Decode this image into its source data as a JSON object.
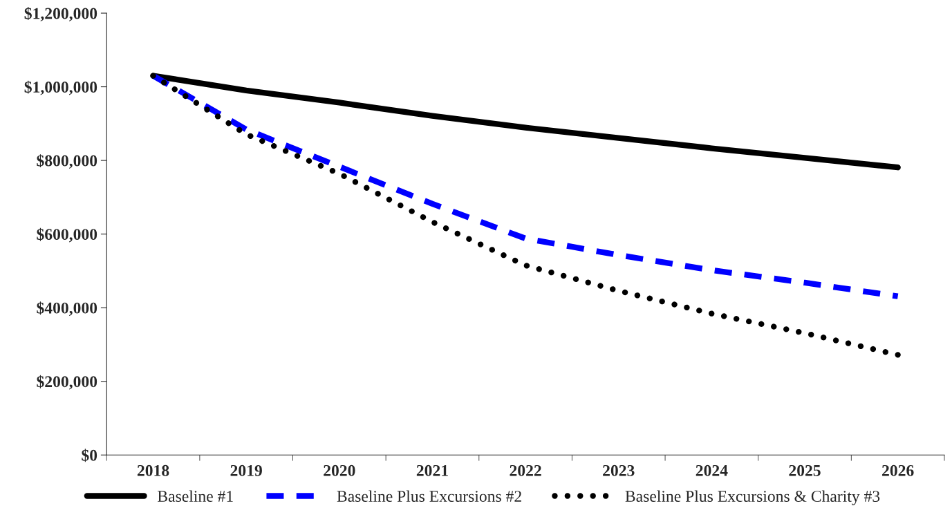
{
  "chart_data": {
    "type": "line",
    "categories": [
      "2018",
      "2019",
      "2020",
      "2021",
      "2022",
      "2023",
      "2024",
      "2025",
      "2026"
    ],
    "series": [
      {
        "name": "Baseline #1",
        "color": "#000000",
        "line_style": "solid",
        "values": [
          1030000,
          990000,
          957000,
          921000,
          889000,
          861000,
          833000,
          807000,
          781000
        ]
      },
      {
        "name": "Baseline Plus Excursions #2",
        "color": "#0000ff",
        "line_style": "dashed",
        "values": [
          1030000,
          884000,
          783000,
          682000,
          588000,
          543000,
          502000,
          468000,
          431000
        ]
      },
      {
        "name": "Baseline Plus Excursions & Charity #3",
        "color": "#000000",
        "line_style": "dotted",
        "values": [
          1030000,
          871000,
          764000,
          633000,
          515000,
          446000,
          384000,
          331000,
          272000
        ]
      }
    ],
    "ylim": [
      0,
      1200000
    ],
    "yticks": [
      {
        "value": 0,
        "label": "$0"
      },
      {
        "value": 200000,
        "label": "$200,000"
      },
      {
        "value": 400000,
        "label": "$400,000"
      },
      {
        "value": 600000,
        "label": "$600,000"
      },
      {
        "value": 800000,
        "label": "$800,000"
      },
      {
        "value": 1000000,
        "label": "$1,000,000"
      },
      {
        "value": 1200000,
        "label": "$1,200,000"
      }
    ],
    "grid": false,
    "legend": "bottom",
    "marker": "none"
  }
}
